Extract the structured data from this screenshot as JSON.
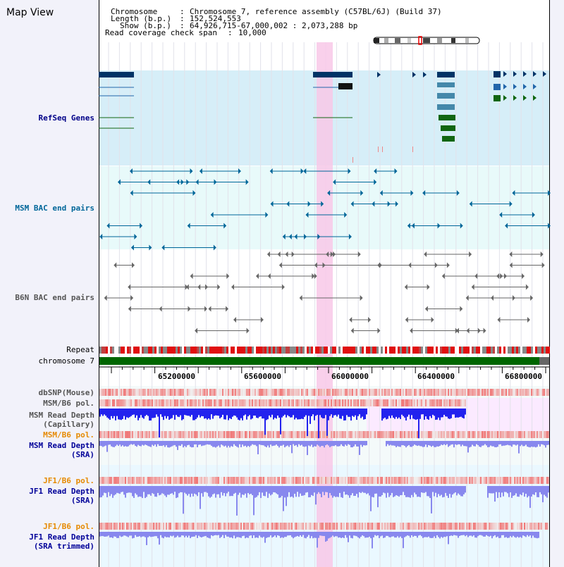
{
  "title": "Map View",
  "header": {
    "chromosome_label": "Chromosome",
    "chromosome_value": "Chromosome 7, reference assembly (C57BL/6J) (Build 37)",
    "length_label": "Length (b.p.)",
    "length_value": "152,524,553",
    "show_label": "Show (b.p.)",
    "show_value": "64,926,715-67,000,002 : 2,073,288 bp",
    "coverage_label": "Read coverage check span",
    "coverage_value": "10,000"
  },
  "tracks": {
    "refseq": {
      "label": "RefSeq Genes",
      "color": "#000088"
    },
    "msm_bac": {
      "label": "MSM BAC end pairs",
      "color": "#006699"
    },
    "b6n_bac": {
      "label": "B6N BAC end pairs",
      "color": "#555555"
    },
    "repeat": {
      "label": "Repeat",
      "color": "#000000"
    },
    "chromosome": {
      "label": "chromosome 7",
      "color": "#000000"
    },
    "dbsnp": {
      "label": "dbSNP(Mouse)",
      "color": "#555555"
    },
    "msm_pol1": {
      "label": "MSM/B6 pol.",
      "color": "#555555"
    },
    "msm_depth_cap": {
      "label1": "MSM Read Depth",
      "label2": "(Capillary)",
      "color": "#555555"
    },
    "msm_pol2": {
      "label": "MSM/B6 pol.",
      "color": "#e68a00"
    },
    "msm_depth_sra": {
      "label1": "MSM Read Depth",
      "label2": "(SRA)",
      "color": "#000099"
    },
    "jf1_pol1": {
      "label": "JF1/B6 pol.",
      "color": "#e68a00"
    },
    "jf1_depth_sra": {
      "label1": "JF1 Read Depth",
      "label2": "(SRA)",
      "color": "#000099"
    },
    "jf1_pol2": {
      "label": "JF1/B6 pol.",
      "color": "#e68a00"
    },
    "jf1_depth_trim": {
      "label1": "JF1 Read Depth",
      "label2": "(SRA trimmed)",
      "color": "#000099"
    }
  },
  "axis": {
    "ticks": [
      "65200000",
      "65600000",
      "66000000",
      "66400000",
      "66800000"
    ]
  },
  "colors": {
    "refseq_bg": "#d6eef8",
    "msm_bg": "#e8fafa",
    "highlight": "#f8c8e8",
    "gene_dark": "#003366",
    "gene_mid": "#4488aa",
    "gene_green": "#116611",
    "chrom_green": "#006600",
    "depth_blue": "#2222ee",
    "depth_light": "#8888ee",
    "snp_red": "#e84040"
  }
}
